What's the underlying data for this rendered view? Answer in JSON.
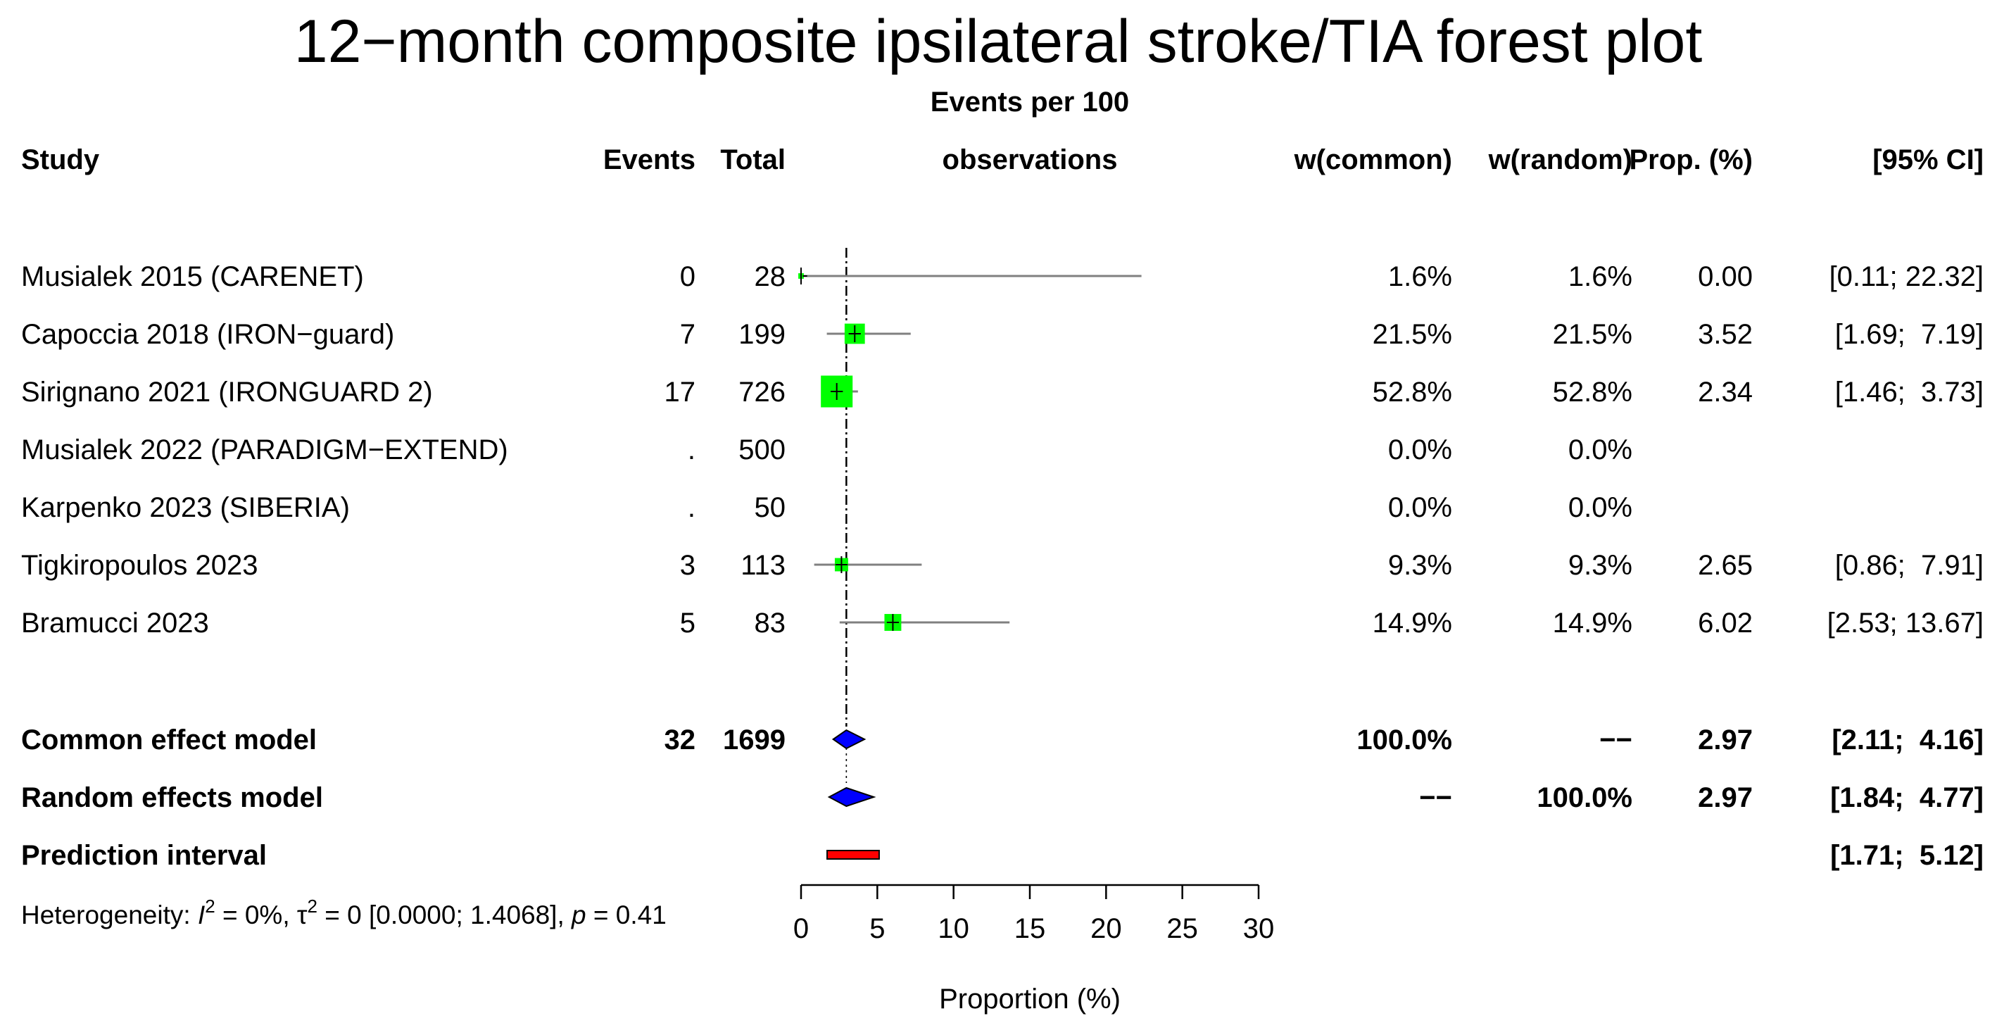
{
  "chart_data": {
    "type": "forest",
    "title": "12−month composite ipsilateral stroke/TIA forest plot",
    "columns": {
      "study": "Study",
      "events": "Events",
      "total": "Total",
      "effect_line1": "Events per 100",
      "effect_line2": "observations",
      "w_common": "w(common)",
      "w_random": "w(random)",
      "prop": "Prop. (%)",
      "ci": "[95% CI]"
    },
    "studies": [
      {
        "label": "Musialek 2015 (CARENET)",
        "events": "0",
        "total": "28",
        "w_common": "1.6%",
        "w_random": "1.6%",
        "prop_text": "0.00",
        "ci_text": "[0.11; 22.32]",
        "est": 0.0,
        "lower": 0.11,
        "upper": 22.32,
        "weight": 1.6
      },
      {
        "label": "Capoccia 2018 (IRON−guard)",
        "events": "7",
        "total": "199",
        "w_common": "21.5%",
        "w_random": "21.5%",
        "prop_text": "3.52",
        "ci_text": "[1.69;  7.19]",
        "est": 3.52,
        "lower": 1.69,
        "upper": 7.19,
        "weight": 21.5
      },
      {
        "label": "Sirignano 2021 (IRONGUARD 2)",
        "events": "17",
        "total": "726",
        "w_common": "52.8%",
        "w_random": "52.8%",
        "prop_text": "2.34",
        "ci_text": "[1.46;  3.73]",
        "est": 2.34,
        "lower": 1.46,
        "upper": 3.73,
        "weight": 52.8
      },
      {
        "label": "Musialek 2022 (PARADIGM−EXTEND)",
        "events": ".",
        "total": "500",
        "w_common": "0.0%",
        "w_random": "0.0%",
        "prop_text": "",
        "ci_text": "",
        "est": null,
        "lower": null,
        "upper": null,
        "weight": 0.0
      },
      {
        "label": "Karpenko 2023 (SIBERIA)",
        "events": ".",
        "total": "50",
        "w_common": "0.0%",
        "w_random": "0.0%",
        "prop_text": "",
        "ci_text": "",
        "est": null,
        "lower": null,
        "upper": null,
        "weight": 0.0
      },
      {
        "label": "Tigkiropoulos 2023",
        "events": "3",
        "total": "113",
        "w_common": "9.3%",
        "w_random": "9.3%",
        "prop_text": "2.65",
        "ci_text": "[0.86;  7.91]",
        "est": 2.65,
        "lower": 0.86,
        "upper": 7.91,
        "weight": 9.3
      },
      {
        "label": "Bramucci 2023",
        "events": "5",
        "total": "83",
        "w_common": "14.9%",
        "w_random": "14.9%",
        "prop_text": "6.02",
        "ci_text": "[2.53; 13.67]",
        "est": 6.02,
        "lower": 2.53,
        "upper": 13.67,
        "weight": 14.9
      }
    ],
    "common": {
      "label": "Common effect model",
      "events": "32",
      "total": "1699",
      "w_common": "100.0%",
      "w_random": "−−",
      "prop_text": "2.97",
      "ci_text": "[2.11;  4.16]",
      "est": 2.97,
      "lower": 2.11,
      "upper": 4.16
    },
    "random": {
      "label": "Random effects model",
      "w_common": "−−",
      "w_random": "100.0%",
      "prop_text": "2.97",
      "ci_text": "[1.84;  4.77]",
      "est": 2.97,
      "lower": 1.84,
      "upper": 4.77
    },
    "prediction": {
      "label": "Prediction interval",
      "ci_text": "[1.71;  5.12]",
      "lower": 1.71,
      "upper": 5.12
    },
    "heterogeneity": {
      "prefix": "Heterogeneity: ",
      "i2_symbol": "I",
      "i2_rest": " = 0%, τ",
      "tau_rest": " = 0 [0.0000; 1.4068], ",
      "p_symbol": "p",
      "p_rest": " = 0.41",
      "sup": "2"
    },
    "xaxis": {
      "label": "Proportion (%)",
      "ticks": [
        0,
        5,
        10,
        15,
        20,
        25,
        30
      ],
      "range": [
        0,
        30
      ]
    },
    "ref_line": 2.97,
    "colors": {
      "square": "#00ff00",
      "diamond": "#0000ff",
      "prediction": "#ff0000",
      "ci_line": "#808080"
    }
  }
}
